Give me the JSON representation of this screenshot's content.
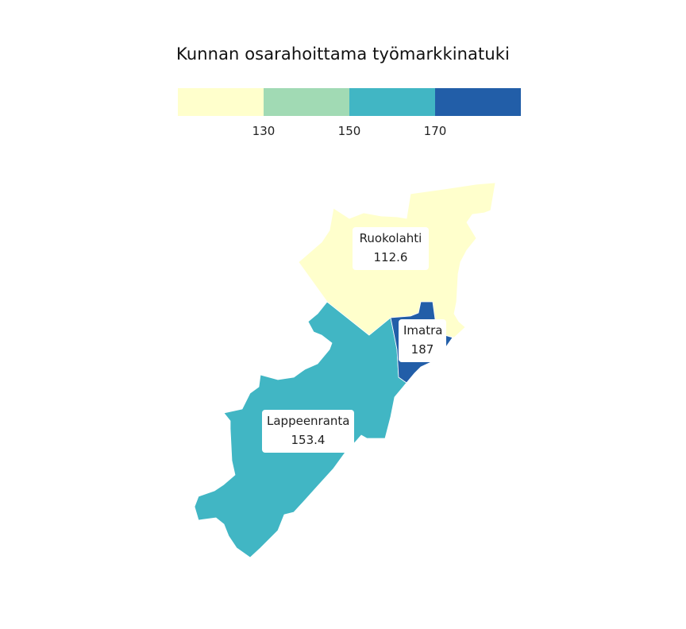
{
  "title": "Kunnan osarahoittama työmarkkinatuki",
  "legend": {
    "colors": [
      "#ffffcc",
      "#a1dab4",
      "#41b6c4",
      "#225ea8"
    ],
    "thresholds": [
      "130",
      "150",
      "170"
    ]
  },
  "regions": [
    {
      "name": "Ruokolahti",
      "value": "112.6",
      "color": "#ffffcc"
    },
    {
      "name": "Imatra",
      "value": "187",
      "color": "#225ea8"
    },
    {
      "name": "Lappeenranta",
      "value": "153.4",
      "color": "#41b6c4"
    }
  ]
}
